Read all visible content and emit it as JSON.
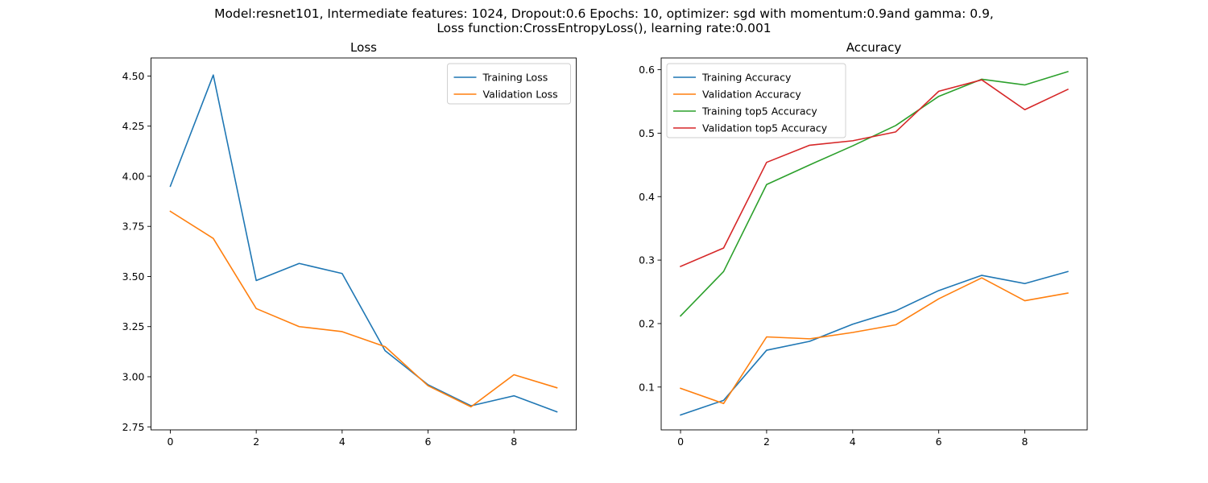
{
  "figure": {
    "suptitle_lines": [
      "Model:resnet101, Intermediate features: 1024, Dropout:0.6 Epochs: 10, optimizer: sgd with momentum:0.9and gamma: 0.9,",
      "Loss function:CrossEntropyLoss(), learning rate:0.001"
    ]
  },
  "colors": {
    "blue": "#1f77b4",
    "orange": "#ff7f0e",
    "green": "#2ca02c",
    "red": "#d62728"
  },
  "chart_data": [
    {
      "type": "line",
      "title": "Loss",
      "xlabel": "",
      "ylabel": "",
      "xlim": [
        -0.45,
        9.45
      ],
      "ylim": [
        2.735,
        4.59
      ],
      "xticks": [
        0,
        2,
        4,
        6,
        8
      ],
      "xtick_labels": [
        "0",
        "2",
        "4",
        "6",
        "8"
      ],
      "yticks": [
        2.75,
        3.0,
        3.25,
        3.5,
        3.75,
        4.0,
        4.25,
        4.5
      ],
      "ytick_labels": [
        "2.75",
        "3.00",
        "3.25",
        "3.50",
        "3.75",
        "4.00",
        "4.25",
        "4.50"
      ],
      "legend_position": "top-right",
      "grid": false,
      "x": [
        0,
        1,
        2,
        3,
        4,
        5,
        6,
        7,
        8,
        9
      ],
      "series": [
        {
          "name": "Training Loss",
          "color": "#1f77b4",
          "values": [
            3.95,
            4.505,
            3.48,
            3.565,
            3.515,
            3.13,
            2.96,
            2.855,
            2.905,
            2.825
          ]
        },
        {
          "name": "Validation Loss",
          "color": "#ff7f0e",
          "values": [
            3.825,
            3.69,
            3.34,
            3.25,
            3.225,
            3.15,
            2.955,
            2.85,
            3.01,
            2.945
          ]
        }
      ]
    },
    {
      "type": "line",
      "title": "Accuracy",
      "xlabel": "",
      "ylabel": "",
      "xlim": [
        -0.45,
        9.45
      ],
      "ylim": [
        0.0325,
        0.6185
      ],
      "xticks": [
        0,
        2,
        4,
        6,
        8
      ],
      "xtick_labels": [
        "0",
        "2",
        "4",
        "6",
        "8"
      ],
      "yticks": [
        0.1,
        0.2,
        0.3,
        0.4,
        0.5,
        0.6
      ],
      "ytick_labels": [
        "0.1",
        "0.2",
        "0.3",
        "0.4",
        "0.5",
        "0.6"
      ],
      "legend_position": "top-left",
      "grid": false,
      "x": [
        0,
        1,
        2,
        3,
        4,
        5,
        6,
        7,
        8,
        9
      ],
      "series": [
        {
          "name": "Training Accuracy",
          "color": "#1f77b4",
          "values": [
            0.056,
            0.079,
            0.158,
            0.172,
            0.199,
            0.22,
            0.252,
            0.276,
            0.263,
            0.282
          ]
        },
        {
          "name": "Validation Accuracy",
          "color": "#ff7f0e",
          "values": [
            0.098,
            0.074,
            0.179,
            0.176,
            0.186,
            0.198,
            0.239,
            0.272,
            0.236,
            0.248
          ]
        },
        {
          "name": "Training top5 Accuracy",
          "color": "#2ca02c",
          "values": [
            0.212,
            0.282,
            0.419,
            0.45,
            0.48,
            0.512,
            0.558,
            0.585,
            0.576,
            0.597
          ]
        },
        {
          "name": "Validation top5 Accuracy",
          "color": "#d62728",
          "values": [
            0.29,
            0.319,
            0.454,
            0.481,
            0.488,
            0.502,
            0.566,
            0.584,
            0.537,
            0.569
          ]
        }
      ]
    }
  ]
}
